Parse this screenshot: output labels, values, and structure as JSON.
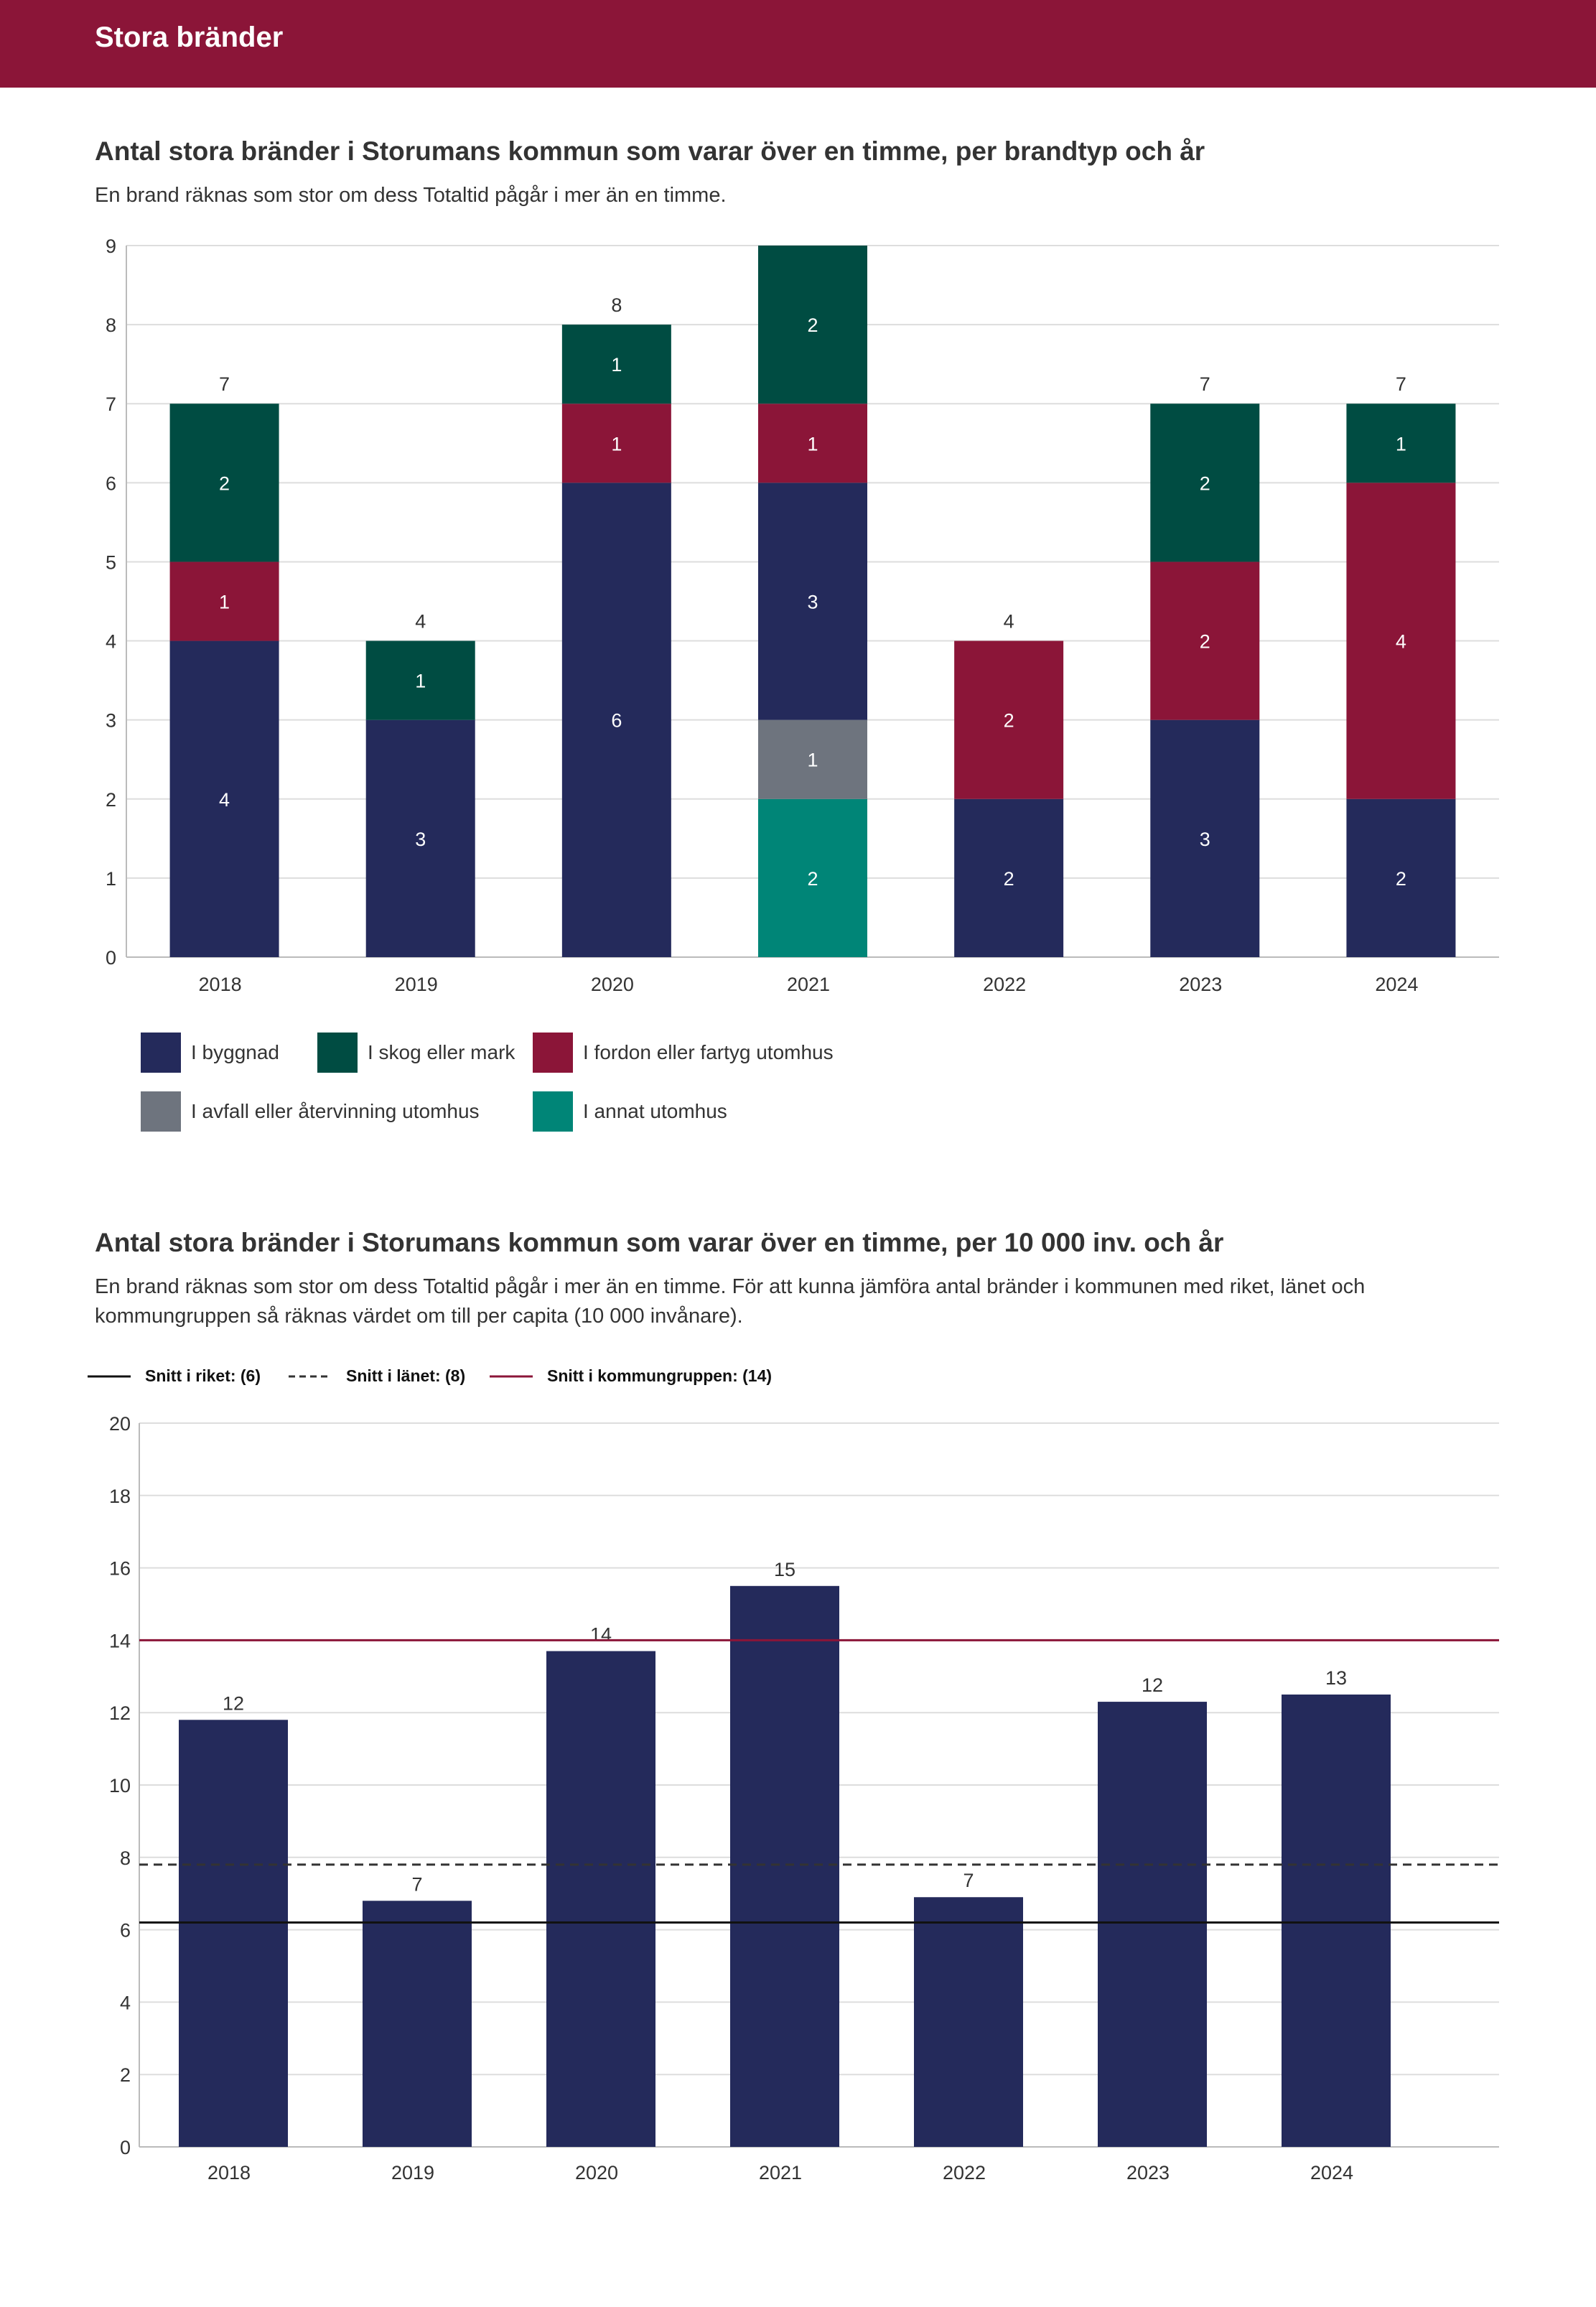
{
  "header": {
    "title": "Stora bränder"
  },
  "colors": {
    "header_bg": "#8b1538",
    "byggnad": "#242a5b",
    "skog": "#004c42",
    "fordon": "#8b1538",
    "avfall": "#6e747e",
    "annat": "#008577",
    "bar2": "#242a5b",
    "line_riket": "#111111",
    "line_lanet": "#333333",
    "line_kommungrupp": "#8b1538"
  },
  "chart1": {
    "title": "Antal stora bränder i Storumans kommun som varar över en timme, per brandtyp och år",
    "subtitle": "En brand räknas som stor om dess Totaltid pågår i mer än en timme."
  },
  "chart2": {
    "title": "Antal stora bränder i Storumans kommun som varar över en timme, per 10 000 inv. och år",
    "subtitle": "En brand räknas som stor om dess Totaltid pågår i mer än en timme. För att kunna jämföra antal bränder i kommunen med riket, länet och kommungruppen så räknas värdet om till per capita (10 000 invånare)."
  },
  "chart_data": [
    {
      "type": "bar",
      "stacked": true,
      "categories": [
        "2018",
        "2019",
        "2020",
        "2021",
        "2022",
        "2023",
        "2024"
      ],
      "series": [
        {
          "name": "I annat utomhus",
          "key": "annat",
          "values": [
            0,
            0,
            0,
            2,
            0,
            0,
            0
          ]
        },
        {
          "name": "I avfall eller återvinning utomhus",
          "key": "avfall",
          "values": [
            0,
            0,
            0,
            1,
            0,
            0,
            0
          ]
        },
        {
          "name": "I byggnad",
          "key": "byggnad",
          "values": [
            4,
            3,
            6,
            3,
            2,
            3,
            2
          ]
        },
        {
          "name": "I fordon eller fartyg utomhus",
          "key": "fordon",
          "values": [
            1,
            0,
            1,
            1,
            2,
            2,
            4
          ]
        },
        {
          "name": "I skog eller mark",
          "key": "skog",
          "values": [
            2,
            1,
            1,
            2,
            0,
            2,
            1
          ]
        }
      ],
      "totals": [
        "7",
        "4",
        "8",
        "",
        "4",
        "7",
        "7"
      ],
      "yticks": [
        "0",
        "1",
        "2",
        "3",
        "4",
        "5",
        "6",
        "7",
        "8",
        "9"
      ],
      "ylim": [
        0,
        9
      ],
      "grid": true,
      "legend": [
        {
          "label": "I byggnad",
          "key": "byggnad"
        },
        {
          "label": "I skog eller mark",
          "key": "skog"
        },
        {
          "label": "I fordon eller fartyg utomhus",
          "key": "fordon"
        },
        {
          "label": "I avfall eller återvinning utomhus",
          "key": "avfall"
        },
        {
          "label": "I annat utomhus",
          "key": "annat"
        }
      ]
    },
    {
      "type": "bar",
      "categories": [
        "2018",
        "2019",
        "2020",
        "2021",
        "2022",
        "2023",
        "2024"
      ],
      "values": [
        11.8,
        6.8,
        13.7,
        15.5,
        6.9,
        12.3,
        12.5
      ],
      "labels": [
        "12",
        "7",
        "14",
        "15",
        "7",
        "12",
        "13"
      ],
      "yticks": [
        "0",
        "2",
        "4",
        "6",
        "8",
        "10",
        "12",
        "14",
        "16",
        "18",
        "20"
      ],
      "ylim": [
        0,
        20
      ],
      "grid": true,
      "reference_lines": [
        {
          "label": "Snitt i riket: (6)",
          "value": 6.2,
          "style": "solid",
          "key": "line_riket"
        },
        {
          "label": "Snitt i länet: (8)",
          "value": 7.8,
          "style": "dashed",
          "key": "line_lanet"
        },
        {
          "label": "Snitt i kommungruppen: (14)",
          "value": 14.0,
          "style": "solid",
          "key": "line_kommungrupp"
        }
      ]
    }
  ]
}
